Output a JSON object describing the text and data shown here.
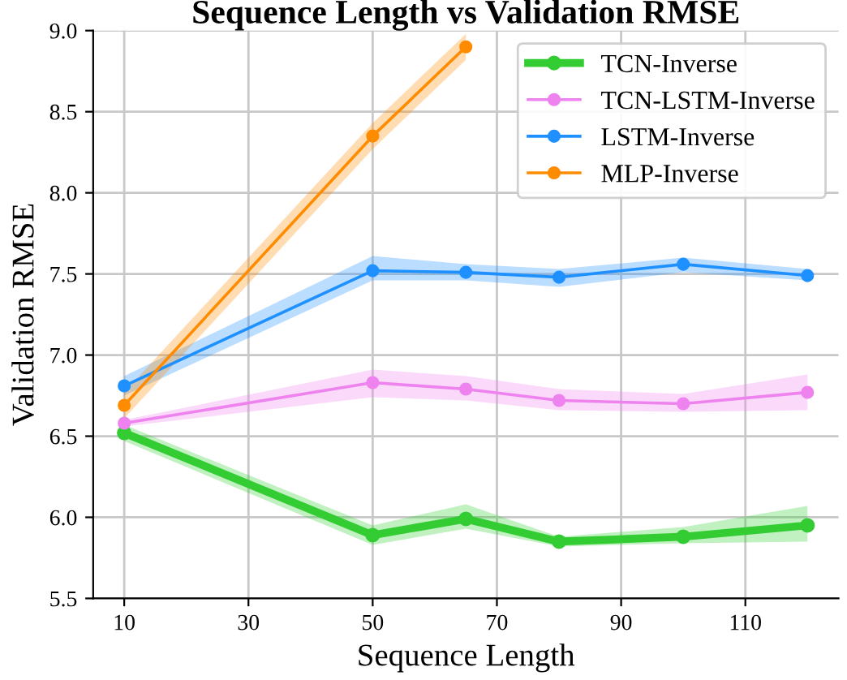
{
  "chart_data": {
    "type": "line",
    "title": "Sequence Length vs Validation RMSE",
    "xlabel": "Sequence Length",
    "ylabel": "Validation RMSE",
    "x": [
      10,
      50,
      65,
      80,
      100,
      120
    ],
    "series": [
      {
        "name": "TCN-Inverse",
        "color": "#33cc33",
        "values": [
          6.52,
          5.89,
          5.99,
          5.85,
          5.88,
          5.95
        ],
        "lower": [
          6.47,
          5.83,
          5.93,
          5.82,
          5.84,
          5.85
        ],
        "upper": [
          6.57,
          5.95,
          6.08,
          5.88,
          5.94,
          6.07
        ]
      },
      {
        "name": "TCN-LSTM-Inverse",
        "color": "#ee82ee",
        "values": [
          6.58,
          6.83,
          6.79,
          6.72,
          6.7,
          6.77
        ],
        "lower": [
          6.56,
          6.74,
          6.72,
          6.66,
          6.65,
          6.66
        ],
        "upper": [
          6.6,
          6.91,
          6.87,
          6.79,
          6.76,
          6.88
        ]
      },
      {
        "name": "LSTM-Inverse",
        "color": "#1e90ff",
        "values": [
          6.81,
          7.52,
          7.51,
          7.48,
          7.56,
          7.49
        ],
        "lower": [
          6.75,
          7.46,
          7.46,
          7.42,
          7.51,
          7.46
        ],
        "upper": [
          6.87,
          7.61,
          7.56,
          7.53,
          7.6,
          7.53
        ]
      },
      {
        "name": "MLP-Inverse",
        "color": "#ff8c00",
        "values": [
          6.69,
          8.35,
          8.9,
          null,
          null,
          null
        ],
        "lower": [
          6.61,
          8.27,
          8.82,
          null,
          null,
          null
        ],
        "upper": [
          6.77,
          8.43,
          8.98,
          null,
          null,
          null
        ]
      }
    ],
    "xlim": [
      5,
      125
    ],
    "ylim": [
      5.5,
      9.0
    ],
    "xticks": [
      10,
      30,
      50,
      70,
      90,
      110
    ],
    "yticks": [
      5.5,
      {
        "value": 6.0,
        "label": "6.0"
      },
      6.5,
      {
        "value": 7.0,
        "label": "7.0"
      },
      7.5,
      {
        "value": 8.0,
        "label": "8.0"
      },
      8.5,
      {
        "value": 9.0,
        "label": "9.0"
      }
    ],
    "grid": true,
    "legend": "top right",
    "marker": "circle",
    "line_style": "solid"
  }
}
